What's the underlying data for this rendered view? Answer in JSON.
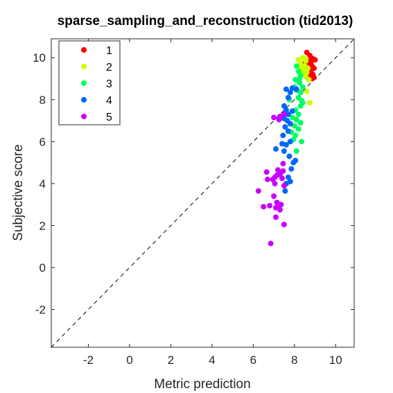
{
  "chart_data": {
    "type": "scatter",
    "title": "sparse_sampling_and_reconstruction (tid2013)",
    "xlabel": "Metric prediction",
    "ylabel": "Subjective score",
    "xlim": [
      -3.8,
      10.9
    ],
    "ylim": [
      -3.8,
      10.9
    ],
    "xticks": [
      -2,
      0,
      2,
      4,
      6,
      8,
      10
    ],
    "yticks": [
      -2,
      0,
      2,
      4,
      6,
      8,
      10
    ],
    "reference_line": "y = x (dashed)",
    "grid": false,
    "legend_position": "top-left",
    "series": [
      {
        "name": "1",
        "color": "#ff0000",
        "points": [
          [
            8.6,
            10.25
          ],
          [
            8.75,
            10.1
          ],
          [
            8.9,
            9.95
          ],
          [
            9.0,
            9.9
          ],
          [
            8.8,
            9.8
          ],
          [
            8.7,
            9.7
          ],
          [
            8.85,
            9.6
          ],
          [
            8.95,
            9.5
          ],
          [
            8.6,
            9.55
          ],
          [
            8.8,
            9.4
          ],
          [
            8.7,
            9.3
          ],
          [
            8.9,
            9.2
          ],
          [
            8.75,
            9.1
          ],
          [
            8.85,
            9.0
          ],
          [
            8.95,
            9.05
          ],
          [
            8.65,
            9.65
          ],
          [
            8.8,
            9.9
          ],
          [
            8.5,
            9.75
          ]
        ]
      },
      {
        "name": "2",
        "color": "#ccff00",
        "points": [
          [
            8.2,
            9.9
          ],
          [
            8.4,
            10.0
          ],
          [
            8.55,
            9.85
          ],
          [
            8.3,
            9.7
          ],
          [
            8.5,
            9.6
          ],
          [
            8.65,
            9.5
          ],
          [
            8.45,
            9.45
          ],
          [
            8.6,
            9.3
          ],
          [
            8.4,
            9.2
          ],
          [
            8.55,
            9.1
          ],
          [
            8.7,
            8.95
          ],
          [
            8.25,
            9.55
          ],
          [
            8.5,
            9.95
          ],
          [
            8.6,
            8.4
          ],
          [
            8.75,
            7.85
          ],
          [
            8.35,
            9.35
          ]
        ]
      },
      {
        "name": "3",
        "color": "#00ff66",
        "points": [
          [
            8.1,
            9.6
          ],
          [
            8.2,
            9.35
          ],
          [
            8.3,
            9.15
          ],
          [
            8.05,
            8.95
          ],
          [
            8.25,
            8.8
          ],
          [
            8.4,
            8.6
          ],
          [
            8.1,
            8.45
          ],
          [
            8.3,
            8.35
          ],
          [
            8.2,
            8.1
          ],
          [
            8.4,
            7.85
          ],
          [
            8.3,
            7.7
          ],
          [
            8.05,
            7.5
          ],
          [
            8.2,
            7.3
          ],
          [
            7.9,
            7.15
          ],
          [
            8.1,
            7.05
          ],
          [
            8.3,
            6.9
          ],
          [
            8.0,
            6.75
          ],
          [
            8.2,
            6.6
          ],
          [
            7.85,
            6.45
          ],
          [
            8.05,
            6.3
          ],
          [
            7.95,
            6.1
          ],
          [
            8.35,
            6.0
          ],
          [
            8.1,
            5.55
          ],
          [
            7.75,
            8.0
          ],
          [
            8.0,
            8.6
          ],
          [
            8.25,
            9.0
          ],
          [
            8.35,
            7.95
          ],
          [
            7.8,
            6.85
          ]
        ]
      },
      {
        "name": "4",
        "color": "#0066ff",
        "points": [
          [
            7.6,
            8.5
          ],
          [
            7.9,
            8.55
          ],
          [
            8.1,
            8.5
          ],
          [
            7.8,
            8.35
          ],
          [
            7.7,
            8.1
          ],
          [
            7.5,
            7.7
          ],
          [
            7.6,
            7.5
          ],
          [
            7.7,
            7.3
          ],
          [
            7.9,
            7.45
          ],
          [
            7.5,
            7.1
          ],
          [
            7.65,
            7.0
          ],
          [
            7.8,
            6.85
          ],
          [
            7.55,
            6.7
          ],
          [
            7.7,
            6.5
          ],
          [
            7.45,
            6.3
          ],
          [
            7.8,
            6.0
          ],
          [
            7.6,
            5.85
          ],
          [
            7.1,
            5.65
          ],
          [
            7.5,
            5.55
          ],
          [
            7.75,
            5.3
          ],
          [
            7.85,
            4.7
          ],
          [
            7.7,
            4.3
          ],
          [
            7.6,
            4.0
          ],
          [
            7.55,
            3.65
          ],
          [
            8.05,
            5.1
          ],
          [
            7.95,
            5.0
          ],
          [
            7.4,
            5.9
          ],
          [
            7.8,
            4.1
          ]
        ]
      },
      {
        "name": "5",
        "color": "#cc00ff",
        "points": [
          [
            7.0,
            7.15
          ],
          [
            7.3,
            7.2
          ],
          [
            7.5,
            7.3
          ],
          [
            7.25,
            7.05
          ],
          [
            7.45,
            4.95
          ],
          [
            7.2,
            4.65
          ],
          [
            7.45,
            4.6
          ],
          [
            6.95,
            4.2
          ],
          [
            7.15,
            4.4
          ],
          [
            7.3,
            4.45
          ],
          [
            6.65,
            4.55
          ],
          [
            6.7,
            4.2
          ],
          [
            7.05,
            4.0
          ],
          [
            7.5,
            3.9
          ],
          [
            7.0,
            3.4
          ],
          [
            7.15,
            3.1
          ],
          [
            7.35,
            3.0
          ],
          [
            7.1,
            2.85
          ],
          [
            7.3,
            2.75
          ],
          [
            6.5,
            2.9
          ],
          [
            6.8,
            2.95
          ],
          [
            6.25,
            3.65
          ],
          [
            7.5,
            2.05
          ],
          [
            7.1,
            2.4
          ],
          [
            6.85,
            1.15
          ],
          [
            7.25,
            2.9
          ],
          [
            7.4,
            4.25
          ],
          [
            7.05,
            4.3
          ]
        ]
      }
    ]
  }
}
